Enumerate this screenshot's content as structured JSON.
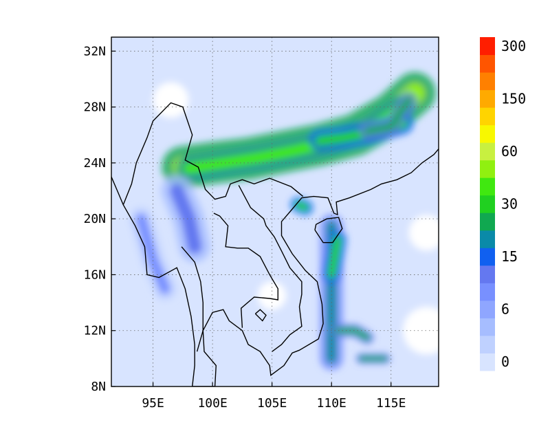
{
  "map": {
    "type": "filled-contour",
    "lon_range": [
      91.5,
      119
    ],
    "lat_range": [
      8,
      33
    ],
    "grid_lines": "dotted",
    "x_ticks": [
      {
        "value": 95,
        "label": "95E"
      },
      {
        "value": 100,
        "label": "100E"
      },
      {
        "value": 105,
        "label": "105E"
      },
      {
        "value": 110,
        "label": "110E"
      },
      {
        "value": 115,
        "label": "115E"
      }
    ],
    "y_ticks": [
      {
        "value": 8,
        "label": "8N"
      },
      {
        "value": 12,
        "label": "12N"
      },
      {
        "value": 16,
        "label": "16N"
      },
      {
        "value": 20,
        "label": "20N"
      },
      {
        "value": 24,
        "label": "24N"
      },
      {
        "value": 28,
        "label": "28N"
      },
      {
        "value": 32,
        "label": "32N"
      }
    ],
    "colorbar": {
      "colors": [
        "#d8e4ff",
        "#bfd1ff",
        "#a6bdff",
        "#8fa6ff",
        "#7890ff",
        "#6478f0",
        "#1060f0",
        "#0a8aa8",
        "#10a850",
        "#20d020",
        "#40e810",
        "#90f010",
        "#c8f040",
        "#f8f800",
        "#ffd400",
        "#ffaa00",
        "#ff8000",
        "#ff5500",
        "#ff1e00"
      ],
      "tick_labels": [
        {
          "index": 0,
          "label": "0"
        },
        {
          "index": 3,
          "label": "6"
        },
        {
          "index": 6,
          "label": "15"
        },
        {
          "index": 9,
          "label": "30"
        },
        {
          "index": 12,
          "label": "60"
        },
        {
          "index": 15,
          "label": "150"
        },
        {
          "index": 18,
          "label": "300"
        }
      ]
    },
    "features": [
      {
        "kind": "rain-band",
        "level": 11,
        "path": [
          [
            97.5,
            23.7
          ],
          [
            100,
            24.0
          ],
          [
            103,
            24.3
          ],
          [
            106,
            24.8
          ],
          [
            109,
            25.3
          ],
          [
            112,
            26.0
          ],
          [
            115,
            27.5
          ],
          [
            117,
            29.0
          ]
        ],
        "width": 1.6
      },
      {
        "kind": "rain-band",
        "level": 10,
        "path": [
          [
            98,
            23.6
          ],
          [
            101,
            24.0
          ],
          [
            104,
            24.4
          ],
          [
            107,
            24.9
          ],
          [
            110,
            25.5
          ],
          [
            113,
            26.3
          ],
          [
            116,
            28.0
          ]
        ],
        "width": 0.9
      },
      {
        "kind": "rain-band",
        "level": 9,
        "path": [
          [
            109,
            25.6
          ],
          [
            111,
            25.8
          ],
          [
            113,
            26.1
          ],
          [
            116,
            26.8
          ]
        ],
        "width": 0.8
      },
      {
        "kind": "rain-band",
        "level": 8,
        "path": [
          [
            113,
            26.3
          ],
          [
            115,
            26.6
          ],
          [
            116.5,
            28.5
          ]
        ],
        "width": 0.6
      },
      {
        "kind": "rain-band",
        "level": 7,
        "path": [
          [
            110,
            19.5
          ],
          [
            110,
            16
          ],
          [
            110,
            12
          ],
          [
            110,
            10
          ]
        ],
        "width": 0.9
      },
      {
        "kind": "rain-band",
        "level": 9,
        "path": [
          [
            110.5,
            18.5
          ],
          [
            110.2,
            17
          ],
          [
            110,
            16
          ]
        ],
        "width": 0.7
      },
      {
        "kind": "rain-band",
        "level": 8,
        "path": [
          [
            110.5,
            12
          ],
          [
            112,
            12
          ],
          [
            113,
            11.5
          ]
        ],
        "width": 0.5
      },
      {
        "kind": "rain-band",
        "level": 8,
        "path": [
          [
            112.5,
            10
          ],
          [
            114.5,
            10
          ]
        ],
        "width": 0.4
      },
      {
        "kind": "rain-band",
        "level": 9,
        "path": [
          [
            107.2,
            21
          ],
          [
            107.8,
            20.8
          ]
        ],
        "width": 0.6
      },
      {
        "kind": "rain-band",
        "level": 5,
        "path": [
          [
            97,
            22
          ],
          [
            98,
            20
          ],
          [
            98.5,
            18
          ]
        ],
        "width": 1.2
      },
      {
        "kind": "rain-band",
        "level": 4,
        "path": [
          [
            94,
            20
          ],
          [
            95,
            17
          ],
          [
            96,
            15
          ]
        ],
        "width": 0.9
      }
    ],
    "light_areas": [
      {
        "kind": "dry-patch",
        "level": 0,
        "center": [
          96.5,
          28.5
        ],
        "radius": 1.5
      },
      {
        "kind": "dry-patch",
        "level": 0,
        "center": [
          105,
          14.5
        ],
        "radius": 1.2
      },
      {
        "kind": "dry-patch",
        "level": 0,
        "center": [
          118,
          12
        ],
        "radius": 2.0
      },
      {
        "kind": "dry-patch",
        "level": 0,
        "center": [
          118,
          19
        ],
        "radius": 1.5
      }
    ]
  }
}
